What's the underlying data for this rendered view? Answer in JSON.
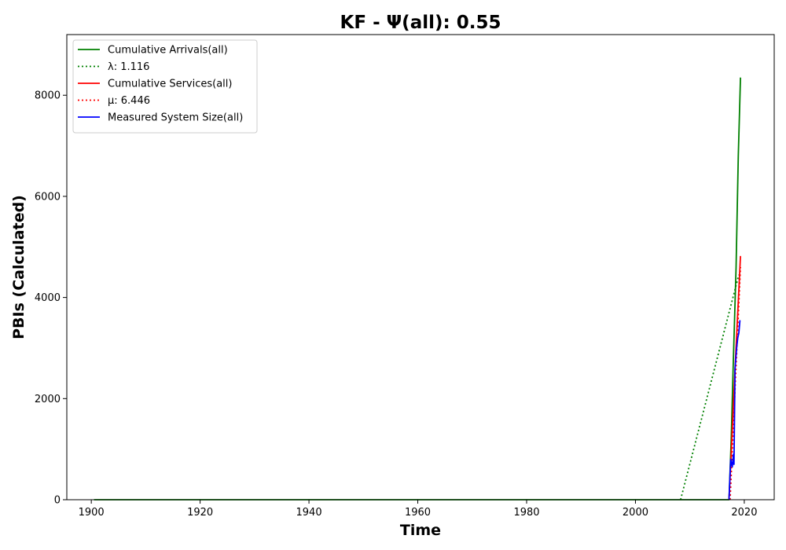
{
  "chart_data": {
    "type": "line",
    "title": "KF -  Ψ(all): 0.55",
    "xlabel": "Time",
    "ylabel": "PBIs (Calculated)",
    "xlim": [
      1895.5,
      2025.5
    ],
    "ylim": [
      0,
      9200
    ],
    "x_ticks": [
      1900,
      1920,
      1940,
      1960,
      1980,
      2000,
      2020
    ],
    "y_ticks": [
      0,
      2000,
      4000,
      6000,
      8000
    ],
    "grid": false,
    "legend_position": "upper-left",
    "series": [
      {
        "name": "Cumulative Arrivals(all)",
        "color": "#008000",
        "style": "solid",
        "points": [
          [
            1900.5,
            0
          ],
          [
            2017.2,
            0
          ],
          [
            2017.6,
            1200
          ],
          [
            2018.0,
            2800
          ],
          [
            2018.5,
            4600
          ],
          [
            2018.9,
            6800
          ],
          [
            2019.3,
            8350
          ]
        ]
      },
      {
        "name": "λ: 1.116",
        "color": "#008000",
        "style": "dotted",
        "points": [
          [
            2008.3,
            0
          ],
          [
            2019.0,
            4450
          ]
        ]
      },
      {
        "name": "Cumulative Services(all)",
        "color": "#ff0000",
        "style": "solid",
        "points": [
          [
            2017.2,
            0
          ],
          [
            2017.6,
            900
          ],
          [
            2018.0,
            1900
          ],
          [
            2018.4,
            2800
          ],
          [
            2018.8,
            3700
          ],
          [
            2019.3,
            4820
          ]
        ]
      },
      {
        "name": "μ: 6.446",
        "color": "#ff0000",
        "style": "dotted",
        "points": [
          [
            2017.4,
            0
          ],
          [
            2019.3,
            4600
          ]
        ]
      },
      {
        "name": "Measured System Size(all)",
        "color": "#0000ff",
        "style": "solid",
        "points": [
          [
            2017.2,
            0
          ],
          [
            2017.5,
            800
          ],
          [
            2017.8,
            650
          ],
          [
            2018.0,
            900
          ],
          [
            2018.1,
            700
          ],
          [
            2018.3,
            2600
          ],
          [
            2018.6,
            3000
          ],
          [
            2018.8,
            3200
          ],
          [
            2019.0,
            3300
          ],
          [
            2019.2,
            3550
          ]
        ]
      }
    ]
  }
}
